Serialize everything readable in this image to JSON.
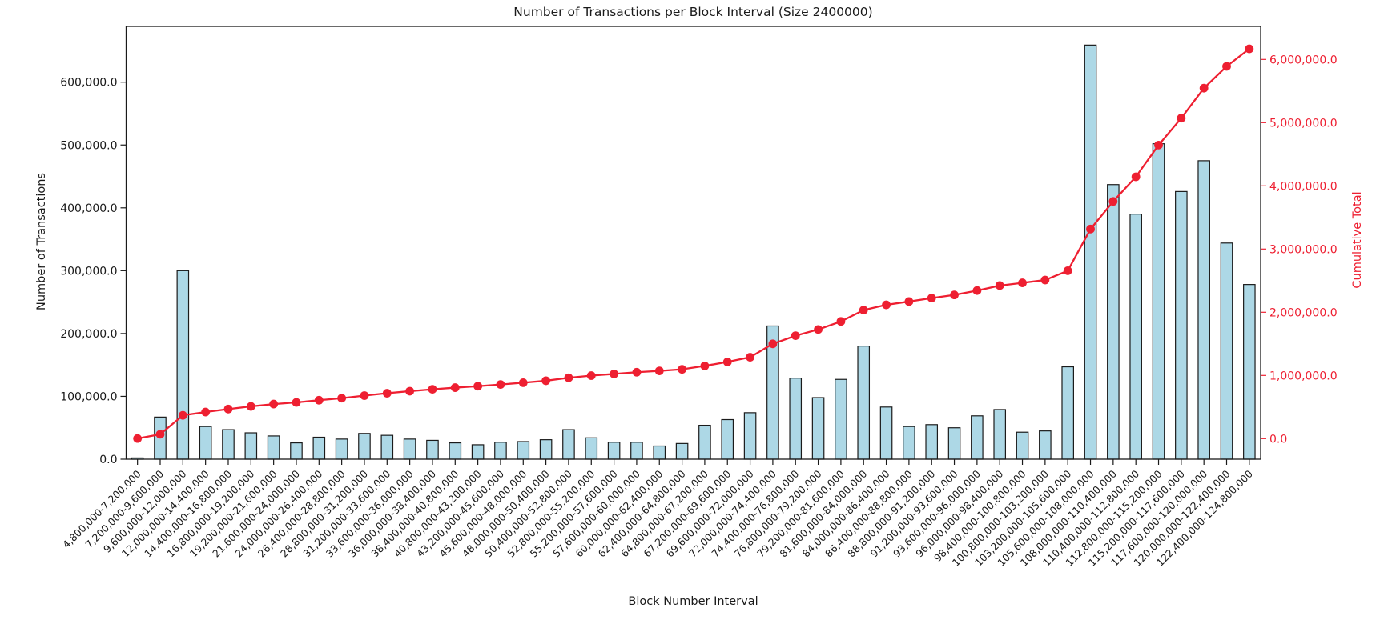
{
  "title": "Number of Transactions per Block Interval (Size 2400000)",
  "colors": {
    "bar_fill": "#add8e6",
    "bar_edge": "#1b1b1b",
    "line_red": "#ee1f31",
    "axis": "#1a1a1a",
    "background": "#ffffff"
  },
  "chart_data": {
    "type": "bar",
    "title": "Number of Transactions per Block Interval (Size 2400000)",
    "xlabel": "Block Number Interval",
    "ylabel_left": "Number of Transactions",
    "ylabel_right": "Cumulative Total",
    "grid": false,
    "legend_position": "none",
    "categories": [
      "4,800,000-7,200,000",
      "7,200,000-9,600,000",
      "9,600,000-12,000,000",
      "12,000,000-14,400,000",
      "14,400,000-16,800,000",
      "16,800,000-19,200,000",
      "19,200,000-21,600,000",
      "21,600,000-24,000,000",
      "24,000,000-26,400,000",
      "26,400,000-28,800,000",
      "28,800,000-31,200,000",
      "31,200,000-33,600,000",
      "33,600,000-36,000,000",
      "36,000,000-38,400,000",
      "38,400,000-40,800,000",
      "40,800,000-43,200,000",
      "43,200,000-45,600,000",
      "45,600,000-48,000,000",
      "48,000,000-50,400,000",
      "50,400,000-52,800,000",
      "52,800,000-55,200,000",
      "55,200,000-57,600,000",
      "57,600,000-60,000,000",
      "60,000,000-62,400,000",
      "62,400,000-64,800,000",
      "64,800,000-67,200,000",
      "67,200,000-69,600,000",
      "69,600,000-72,000,000",
      "72,000,000-74,400,000",
      "74,400,000-76,800,000",
      "76,800,000-79,200,000",
      "79,200,000-81,600,000",
      "81,600,000-84,000,000",
      "84,000,000-86,400,000",
      "86,400,000-88,800,000",
      "88,800,000-91,200,000",
      "91,200,000-93,600,000",
      "93,600,000-96,000,000",
      "96,000,000-98,400,000",
      "98,400,000-100,800,000",
      "100,800,000-103,200,000",
      "103,200,000-105,600,000",
      "105,600,000-108,000,000",
      "108,000,000-110,400,000",
      "110,400,000-112,800,000",
      "112,800,000-115,200,000",
      "115,200,000-117,600,000",
      "117,600,000-120,000,000",
      "120,000,000-122,400,000",
      "122,400,000-124,800,000"
    ],
    "series": [
      {
        "name": "Number of Transactions",
        "type": "bar",
        "axis": "left",
        "values": [
          2000,
          67000,
          300000,
          52000,
          47000,
          42000,
          37000,
          26000,
          35000,
          32000,
          41000,
          38000,
          32000,
          30000,
          26000,
          23000,
          27000,
          28000,
          31000,
          47000,
          34000,
          27000,
          27000,
          21000,
          25000,
          54000,
          63000,
          74000,
          212000,
          129000,
          98000,
          127000,
          180000,
          83000,
          52000,
          55000,
          50000,
          69000,
          79000,
          43000,
          45000,
          147000,
          659000,
          437000,
          390000,
          502000,
          426000,
          475000,
          344000,
          278000
        ]
      },
      {
        "name": "Cumulative Total",
        "type": "line",
        "axis": "right",
        "values": [
          2000,
          69000,
          369000,
          421000,
          468000,
          510000,
          547000,
          573000,
          608000,
          640000,
          681000,
          719000,
          751000,
          781000,
          807000,
          830000,
          857000,
          885000,
          916000,
          963000,
          997000,
          1024000,
          1051000,
          1072000,
          1097000,
          1151000,
          1214000,
          1288000,
          1500000,
          1629000,
          1727000,
          1854000,
          2034000,
          2117000,
          2169000,
          2224000,
          2274000,
          2343000,
          2422000,
          2465000,
          2510000,
          2657000,
          3316000,
          3753000,
          4143000,
          4645000,
          5071000,
          5546000,
          5890000,
          6168000
        ]
      }
    ],
    "left_axis": {
      "ticks": [
        0,
        100000,
        200000,
        300000,
        400000,
        500000,
        600000
      ],
      "tick_labels": [
        "0.0",
        "100,000.0",
        "200,000.0",
        "300,000.0",
        "400,000.0",
        "500,000.0",
        "600,000.0"
      ],
      "range_top": 688000
    },
    "right_axis": {
      "ticks": [
        0,
        1000000,
        2000000,
        3000000,
        4000000,
        5000000,
        6000000
      ],
      "tick_labels": [
        "0.0",
        "1,000,000.0",
        "2,000,000.0",
        "3,000,000.0",
        "4,000,000.0",
        "5,000,000.0",
        "6,000,000.0"
      ],
      "range_top": 6520000
    }
  }
}
